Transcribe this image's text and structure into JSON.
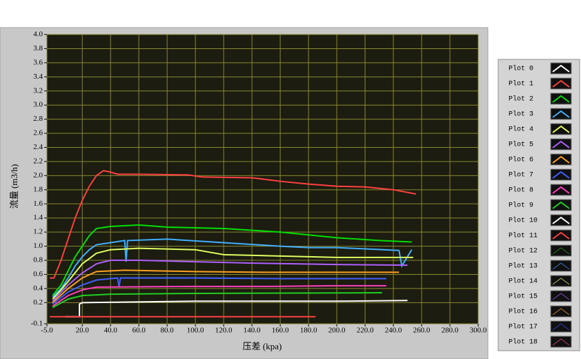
{
  "chart_data": {
    "type": "line",
    "x_label": "压差 (kpa)",
    "y_label": "流量 (m3/h)",
    "xlim": [
      -5,
      300
    ],
    "xticks": [
      {
        "value": -5,
        "label": "-5.0"
      },
      {
        "value": 20,
        "label": "20.0"
      },
      {
        "value": 40,
        "label": "40.0"
      },
      {
        "value": 60,
        "label": "60.0"
      },
      {
        "value": 80,
        "label": "80.0"
      },
      {
        "value": 100,
        "label": "100.0"
      },
      {
        "value": 120,
        "label": "120.0"
      },
      {
        "value": 140,
        "label": "140.0"
      },
      {
        "value": 160,
        "label": "160.0"
      },
      {
        "value": 180,
        "label": "180.0"
      },
      {
        "value": 200,
        "label": "200.0"
      },
      {
        "value": 220,
        "label": "220.0"
      },
      {
        "value": 240,
        "label": "240.0"
      },
      {
        "value": 260,
        "label": "260.0"
      },
      {
        "value": 280,
        "label": "280.0"
      },
      {
        "value": 300,
        "label": "300.0"
      }
    ],
    "ylim": [
      -0.1,
      4
    ],
    "yticks": [
      -0.1,
      0.2,
      0.4,
      0.6,
      0.8,
      {
        "value": 1,
        "label": "1.0"
      },
      1.2,
      1.4,
      1.6,
      1.8,
      {
        "value": 2,
        "label": "2.0"
      },
      2.2,
      2.4,
      2.6,
      2.8,
      {
        "value": 3,
        "label": "3.0"
      },
      3.2,
      3.4,
      3.6,
      3.8,
      {
        "value": 4,
        "label": "4.0"
      }
    ],
    "grid": true,
    "series": [
      {
        "name": "Plot 0",
        "color": "#ffffff",
        "line_width": 2,
        "x": [
          8,
          18,
          18,
          20,
          100,
          200,
          250
        ],
        "values": [
          0,
          0,
          0.18,
          0.2,
          0.22,
          0.22,
          0.23
        ]
      },
      {
        "name": "Plot 1",
        "color": "#ff4040",
        "line_width": 2,
        "x": [
          -3,
          0,
          5,
          10,
          15,
          20,
          25,
          30,
          35,
          40,
          45,
          60,
          95,
          105,
          140,
          160,
          180,
          200,
          220,
          240,
          256
        ],
        "values": [
          0.55,
          0.55,
          0.8,
          1.1,
          1.4,
          1.65,
          1.85,
          2.0,
          2.07,
          2.05,
          2.02,
          2.02,
          2.01,
          1.98,
          1.97,
          1.92,
          1.88,
          1.85,
          1.84,
          1.8,
          1.74
        ]
      },
      {
        "name": "Plot 2",
        "color": "#00e000",
        "line_width": 2,
        "x": [
          -1,
          5,
          10,
          15,
          20,
          25,
          30,
          40,
          60,
          80,
          120,
          160,
          200,
          230,
          253
        ],
        "values": [
          0.3,
          0.45,
          0.65,
          0.85,
          1.0,
          1.15,
          1.25,
          1.28,
          1.3,
          1.27,
          1.25,
          1.2,
          1.12,
          1.08,
          1.06
        ]
      },
      {
        "name": "Plot 3",
        "color": "#40b0ff",
        "line_width": 2,
        "x": [
          -1,
          5,
          10,
          15,
          20,
          25,
          30,
          40,
          50,
          51,
          52,
          80,
          120,
          160,
          180,
          200,
          244,
          246,
          253
        ],
        "values": [
          0.28,
          0.4,
          0.55,
          0.72,
          0.85,
          0.95,
          1.02,
          1.05,
          1.08,
          0.78,
          1.08,
          1.1,
          1.05,
          1.0,
          0.98,
          0.98,
          0.94,
          0.72,
          0.95
        ]
      },
      {
        "name": "Plot 4",
        "color": "#e0ff60",
        "line_width": 2,
        "x": [
          -1,
          5,
          10,
          20,
          30,
          40,
          60,
          100,
          120,
          160,
          200,
          254
        ],
        "values": [
          0.25,
          0.38,
          0.5,
          0.75,
          0.9,
          0.95,
          0.97,
          0.95,
          0.88,
          0.86,
          0.84,
          0.84
        ]
      },
      {
        "name": "Plot 5",
        "color": "#b060ff",
        "line_width": 2,
        "x": [
          -1,
          10,
          20,
          30,
          40,
          60,
          100,
          140,
          200,
          250
        ],
        "values": [
          0.22,
          0.45,
          0.62,
          0.75,
          0.8,
          0.8,
          0.78,
          0.76,
          0.74,
          0.73
        ]
      },
      {
        "name": "Plot 6",
        "color": "#ffa020",
        "line_width": 2,
        "x": [
          -1,
          10,
          20,
          30,
          50,
          100,
          150,
          200,
          244
        ],
        "values": [
          0.2,
          0.4,
          0.55,
          0.64,
          0.66,
          0.64,
          0.63,
          0.63,
          0.63
        ]
      },
      {
        "name": "Plot 7",
        "color": "#4060ff",
        "line_width": 2,
        "x": [
          -1,
          10,
          20,
          30,
          45,
          46,
          47,
          100,
          160,
          235
        ],
        "values": [
          0.18,
          0.35,
          0.45,
          0.52,
          0.55,
          0.42,
          0.55,
          0.55,
          0.54,
          0.54
        ]
      },
      {
        "name": "Plot 8",
        "color": "#ff40c0",
        "line_width": 2,
        "x": [
          -1,
          10,
          20,
          30,
          100,
          150,
          200,
          235
        ],
        "values": [
          0.15,
          0.3,
          0.38,
          0.42,
          0.43,
          0.43,
          0.44,
          0.44
        ]
      },
      {
        "name": "Plot 9",
        "color": "#20d020",
        "line_width": 2,
        "x": [
          -1,
          10,
          20,
          40,
          100,
          232
        ],
        "values": [
          0.13,
          0.25,
          0.3,
          0.32,
          0.33,
          0.34
        ]
      },
      {
        "name": "Plot 10",
        "color": "#ffffff",
        "line_width": 2,
        "x": [],
        "values": []
      },
      {
        "name": "Plot 11",
        "color": "#ff4040",
        "line_width": 2,
        "x": [
          -3,
          185
        ],
        "values": [
          0,
          0
        ]
      },
      {
        "name": "Plot 12",
        "color": "#208020",
        "line_width": 1,
        "x": [],
        "values": []
      },
      {
        "name": "Plot 13",
        "color": "#4070c0",
        "line_width": 1,
        "x": [],
        "values": []
      },
      {
        "name": "Plot 14",
        "color": "#b0c060",
        "line_width": 1,
        "x": [],
        "values": []
      },
      {
        "name": "Plot 15",
        "color": "#8050c0",
        "line_width": 1,
        "x": [],
        "values": []
      },
      {
        "name": "Plot 16",
        "color": "#c08030",
        "line_width": 1,
        "x": [],
        "values": []
      },
      {
        "name": "Plot 17",
        "color": "#3040c0",
        "line_width": 1,
        "x": [],
        "values": []
      },
      {
        "name": "Plot 18",
        "color": "#c04070",
        "line_width": 1,
        "x": [],
        "values": []
      }
    ]
  }
}
